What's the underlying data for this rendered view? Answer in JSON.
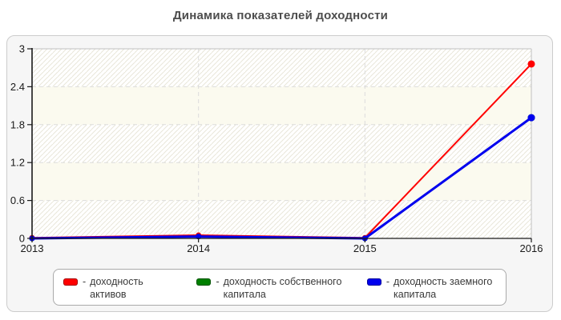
{
  "title": "Динамика показателей доходности",
  "legend": {
    "prefix": "- ",
    "position": "bottom"
  },
  "chart_data": {
    "type": "line",
    "categories": [
      "2013",
      "2014",
      "2015",
      "2016"
    ],
    "series": [
      {
        "name": "доходность активов",
        "color": "#ff0000",
        "values": [
          0.01,
          0.05,
          0.01,
          2.76
        ]
      },
      {
        "name": "доходность собственного капитала",
        "color": "#008000",
        "values": [
          0,
          0.03,
          0,
          1.91
        ]
      },
      {
        "name": "доходность заемного капитала",
        "color": "#0000ee",
        "values": [
          0,
          0.03,
          0,
          1.91
        ]
      }
    ],
    "xlabel": "",
    "ylabel": "",
    "ylim": [
      0,
      3
    ],
    "yticks": [
      0,
      0.6,
      1.2,
      1.8,
      2.4,
      3
    ],
    "ytick_labels": [
      "0",
      "0.6",
      "1.2",
      "1.8",
      "2.4",
      "3"
    ],
    "grid": "dashed horizontal at each y tick and vertical at inner year ticks",
    "legend_position": "bottom",
    "colors": {
      "plot_bg": "#ffffff",
      "band_alt": "#fbfaef",
      "hatch": "#e9e7d9",
      "grid": "#dcdcdc",
      "axis": "#1a1a1a",
      "plot_border": "#c0c0c0",
      "tick_text": "#1a1a1a"
    }
  }
}
